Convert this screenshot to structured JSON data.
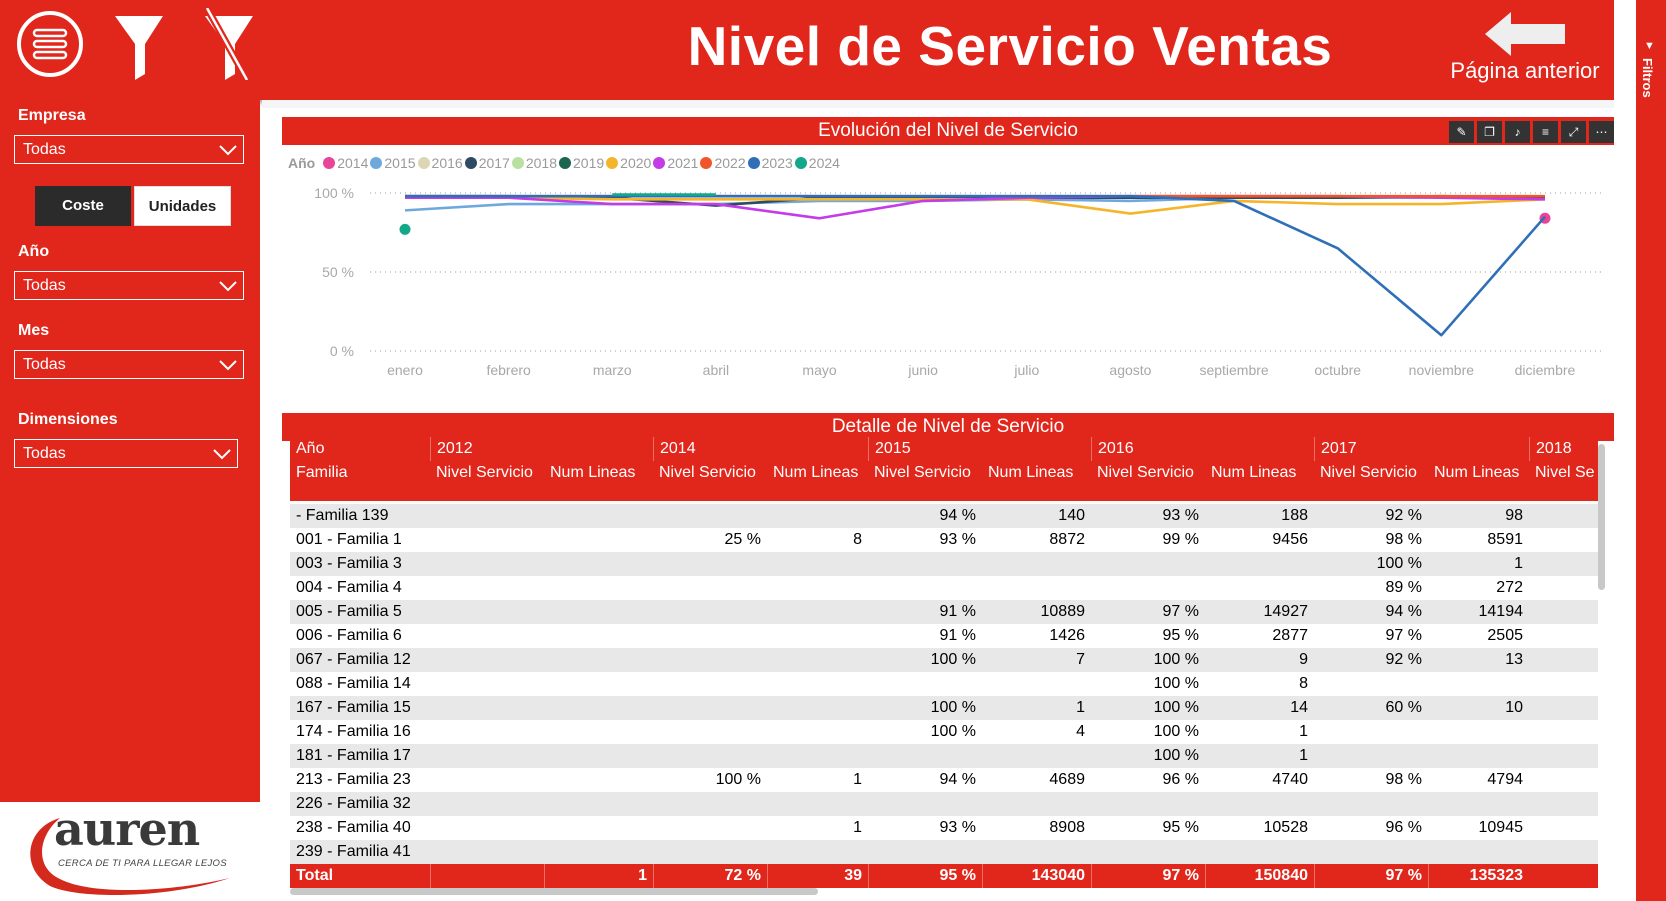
{
  "header": {
    "title": "Nivel de Servicio Ventas",
    "back_label": "Página anterior",
    "icons": [
      "menu-icon",
      "filter-icon",
      "clear-filter-icon",
      "back-arrow-icon"
    ]
  },
  "sidebar": {
    "empresa_label": "Empresa",
    "empresa_value": "Todas",
    "coste_label": "Coste",
    "unidades_label": "Unidades",
    "ano_label": "Año",
    "ano_value": "Todas",
    "mes_label": "Mes",
    "mes_value": "Todas",
    "dimensiones_label": "Dimensiones",
    "dimensiones_value": "Todas",
    "logo_text": "auren",
    "logo_tagline": "CERCA DE TI PARA LLEGAR LEJOS"
  },
  "filters_pane": {
    "label": "Filtros"
  },
  "chart": {
    "title": "Evolución del Nivel de Servicio",
    "legend_title": "Año",
    "colors": {
      "2014": "#e8449a",
      "2015": "#6ea8dc",
      "2016": "#dcd6b4",
      "2017": "#2f4a63",
      "2018": "#b8e0a0",
      "2019": "#1a6650",
      "2020": "#f5b52a",
      "2021": "#c43be8",
      "2022": "#f0562a",
      "2023": "#2f6fb8",
      "2024": "#14a88a"
    }
  },
  "chart_data": {
    "type": "line",
    "title": "Evolución del Nivel de Servicio",
    "legend_title": "Año",
    "categories": [
      "enero",
      "febrero",
      "marzo",
      "abril",
      "mayo",
      "junio",
      "julio",
      "agosto",
      "septiembre",
      "octubre",
      "noviembre",
      "diciembre"
    ],
    "y_ticks": [
      "100 %",
      "50 %",
      "0 %"
    ],
    "ylim": [
      0,
      100
    ],
    "series": [
      {
        "name": "2014",
        "values": [
          null,
          null,
          null,
          null,
          null,
          null,
          null,
          null,
          null,
          null,
          null,
          84
        ]
      },
      {
        "name": "2015",
        "values": [
          89,
          93,
          93,
          93,
          95,
          95,
          96,
          95,
          97,
          97,
          97,
          97
        ]
      },
      {
        "name": "2016",
        "values": [
          98,
          98,
          98,
          98,
          98,
          98,
          98,
          98,
          98,
          98,
          97,
          97
        ]
      },
      {
        "name": "2017",
        "values": [
          98,
          98,
          97,
          92,
          97,
          97,
          97,
          97,
          97,
          97,
          98,
          97
        ]
      },
      {
        "name": "2018",
        "values": [
          null,
          null,
          null,
          null,
          null,
          null,
          null,
          null,
          null,
          null,
          null,
          null
        ]
      },
      {
        "name": "2019",
        "values": [
          null,
          null,
          null,
          null,
          null,
          null,
          null,
          null,
          null,
          null,
          null,
          null
        ]
      },
      {
        "name": "2020",
        "values": [
          98,
          97,
          96,
          96,
          96,
          96,
          96,
          87,
          95,
          93,
          93,
          96
        ]
      },
      {
        "name": "2021",
        "values": [
          97,
          97,
          93,
          93,
          84,
          95,
          97,
          98,
          98,
          98,
          97,
          96
        ]
      },
      {
        "name": "2022",
        "values": [
          98,
          98,
          98,
          98,
          98,
          98,
          98,
          98,
          98,
          98,
          98,
          98
        ]
      },
      {
        "name": "2023",
        "values": [
          98,
          98,
          98,
          98,
          98,
          98,
          98,
          98,
          95,
          65,
          10,
          85
        ]
      },
      {
        "name": "2024",
        "values": [
          77,
          null,
          99,
          99,
          null,
          null,
          null,
          null,
          null,
          null,
          null,
          null
        ]
      }
    ]
  },
  "table": {
    "title": "Detalle de Nivel de Servicio",
    "year_label": "Año",
    "family_label": "Familia",
    "years": [
      "2012",
      "2014",
      "2015",
      "2016",
      "2017",
      "2018"
    ],
    "nivel_label": "Nivel Servicio",
    "nivel_label_cut": "Nivel Se",
    "lineas_label": "Num Lineas",
    "rows": [
      {
        "familia": "- Familia 139",
        "v": [
          "",
          "",
          "",
          "",
          "94 %",
          "140",
          "93 %",
          "188",
          "92 %",
          "98"
        ]
      },
      {
        "familia": "001 - Familia 1",
        "v": [
          "",
          "",
          "25 %",
          "8",
          "93 %",
          "8872",
          "99 %",
          "9456",
          "98 %",
          "8591"
        ]
      },
      {
        "familia": "003 - Familia 3",
        "v": [
          "",
          "",
          "",
          "",
          "",
          "",
          "",
          "",
          "100 %",
          "1"
        ]
      },
      {
        "familia": "004 - Familia 4",
        "v": [
          "",
          "",
          "",
          "",
          "",
          "",
          "",
          "",
          "89 %",
          "272"
        ]
      },
      {
        "familia": "005 - Familia 5",
        "v": [
          "",
          "",
          "",
          "",
          "91 %",
          "10889",
          "97 %",
          "14927",
          "94 %",
          "14194"
        ]
      },
      {
        "familia": "006 - Familia 6",
        "v": [
          "",
          "",
          "",
          "",
          "91 %",
          "1426",
          "95 %",
          "2877",
          "97 %",
          "2505"
        ]
      },
      {
        "familia": "067 - Familia 12",
        "v": [
          "",
          "",
          "",
          "",
          "100 %",
          "7",
          "100 %",
          "9",
          "92 %",
          "13"
        ]
      },
      {
        "familia": "088 - Familia 14",
        "v": [
          "",
          "",
          "",
          "",
          "",
          "",
          "100 %",
          "8",
          "",
          ""
        ]
      },
      {
        "familia": "167 - Familia 15",
        "v": [
          "",
          "",
          "",
          "",
          "100 %",
          "1",
          "100 %",
          "14",
          "60 %",
          "10"
        ]
      },
      {
        "familia": "174 - Familia 16",
        "v": [
          "",
          "",
          "",
          "",
          "100 %",
          "4",
          "100 %",
          "1",
          "",
          ""
        ]
      },
      {
        "familia": "181 - Familia 17",
        "v": [
          "",
          "",
          "",
          "",
          "",
          "",
          "100 %",
          "1",
          "",
          ""
        ]
      },
      {
        "familia": "213 - Familia 23",
        "v": [
          "",
          "",
          "100 %",
          "1",
          "94 %",
          "4689",
          "96 %",
          "4740",
          "98 %",
          "4794"
        ]
      },
      {
        "familia": "226 - Familia 32",
        "v": [
          "",
          "",
          "",
          "",
          "",
          "",
          "",
          "",
          "",
          ""
        ]
      },
      {
        "familia": "238 - Familia 40",
        "v": [
          "",
          "",
          "",
          "1",
          "93 %",
          "8908",
          "95 %",
          "10528",
          "96 %",
          "10945"
        ]
      },
      {
        "familia": "239 - Familia 41",
        "v": [
          "",
          "",
          "",
          "",
          "",
          "",
          "",
          "",
          "",
          ""
        ]
      }
    ],
    "total": {
      "familia": "Total",
      "v": [
        "",
        "1",
        "72 %",
        "39",
        "95 %",
        "143040",
        "97 %",
        "150840",
        "97 %",
        "135323"
      ]
    }
  }
}
